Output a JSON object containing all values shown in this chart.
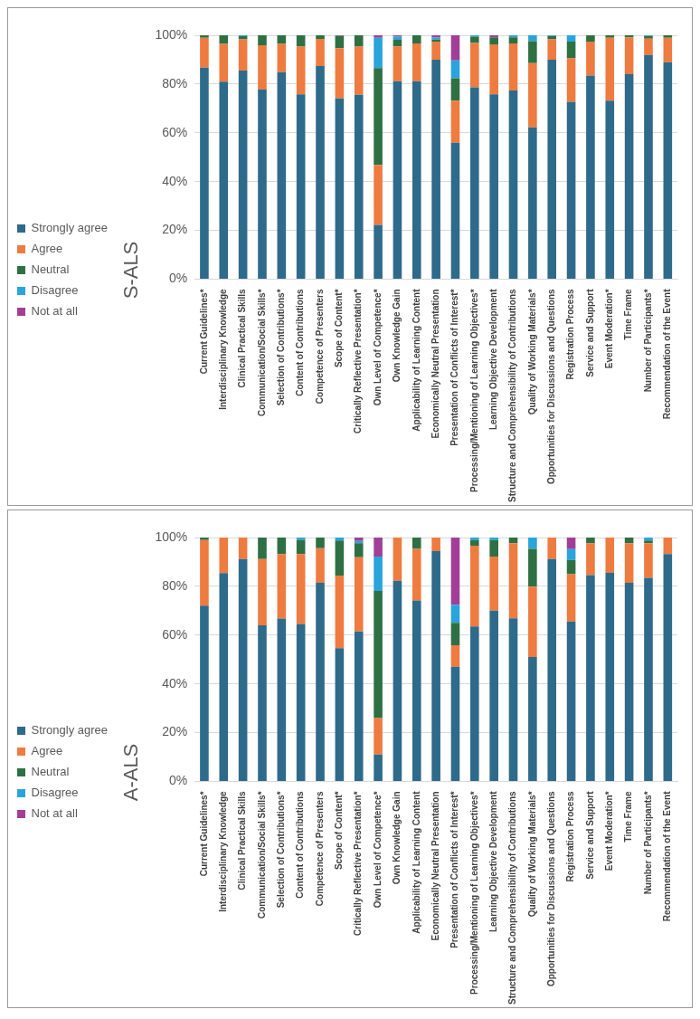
{
  "chart_data": [
    {
      "type": "bar",
      "title": "S-ALS",
      "stacked": true,
      "legend": "left",
      "grid": "y",
      "ylim": [
        0,
        100
      ],
      "yticks": [
        {
          "value": 0,
          "label": "0%"
        },
        {
          "value": 20,
          "label": "20%"
        },
        {
          "value": 40,
          "label": "40%"
        },
        {
          "value": 60,
          "label": "60%"
        },
        {
          "value": 80,
          "label": "80%"
        },
        {
          "value": 100,
          "label": "100%"
        }
      ],
      "categories": [
        "Current Guidelines*",
        "Interdisciplinary Knowledge",
        "Clinical Practical Skills",
        "Communication/Social Skills*",
        "Selection of Contributions*",
        "Content of Contributions",
        "Competence of Presenters",
        "Scope of Content*",
        "Critically Reflective Presentation*",
        "Own Level of Competence*",
        "Own Knowledge Gain",
        "Applicability of Learning Content",
        "Economically Neutral Presentation",
        "Presentation of Conflicts of Interest*",
        "Processing/Mentioning of Learning Objectives*",
        "Learning Objective Development",
        "Structure and Comprehensibility of Contributions",
        "Quality of Working Materials*",
        "Opportunities for Discussions and Questions",
        "Registration Process",
        "Service and Support",
        "Event Moderation*",
        "Time Frame",
        "Number of Participants*",
        "Recommendation of the Event"
      ],
      "series": [
        {
          "name": "Strongly agree",
          "color": "#2e6a8a",
          "values": [
            86.7,
            81,
            85.5,
            77.7,
            84.9,
            75.8,
            87.4,
            74.1,
            75.6,
            22.2,
            81.2,
            81.2,
            90,
            55.9,
            78.7,
            75.8,
            77.4,
            62.2,
            90,
            72.7,
            83.5,
            73.2,
            84,
            91.9,
            89
          ]
        },
        {
          "name": "Agree",
          "color": "#ee7b40",
          "values": [
            12.3,
            15.5,
            12.8,
            18.2,
            11.6,
            19.6,
            11.1,
            20.6,
            19.8,
            24.6,
            14.3,
            15.5,
            7.4,
            17.3,
            18.1,
            20.5,
            19.3,
            26.4,
            8.3,
            17.8,
            13.9,
            25.8,
            15.2,
            6.7,
            10
          ]
        },
        {
          "name": "Neutral",
          "color": "#2e7043",
          "values": [
            1,
            3.5,
            1.3,
            4.1,
            3.5,
            4.6,
            1.5,
            5,
            4.6,
            39.7,
            2.6,
            3.3,
            0.8,
            9.2,
            2.6,
            2.9,
            2.5,
            9,
            1.4,
            6.9,
            2.6,
            1,
            0.8,
            1.1,
            1
          ]
        },
        {
          "name": "Disagree",
          "color": "#29a4dc",
          "values": [
            0,
            0,
            0.4,
            0,
            0,
            0,
            0,
            0,
            0,
            12.5,
            1.3,
            0,
            0.9,
            7.3,
            0.6,
            0,
            0.8,
            2.4,
            0.3,
            2.6,
            0,
            0,
            0,
            0.3,
            0
          ]
        },
        {
          "name": "Not at all",
          "color": "#a13f97",
          "values": [
            0,
            0,
            0,
            0,
            0,
            0,
            0,
            0.3,
            0,
            1,
            0.6,
            0,
            0.9,
            10.3,
            0,
            0.8,
            0,
            0,
            0,
            0,
            0,
            0,
            0,
            0,
            0
          ]
        }
      ]
    },
    {
      "type": "bar",
      "title": "A-ALS",
      "stacked": true,
      "legend": "left",
      "grid": "y",
      "ylim": [
        0,
        100
      ],
      "yticks": [
        {
          "value": 0,
          "label": "0%"
        },
        {
          "value": 20,
          "label": "20%"
        },
        {
          "value": 40,
          "label": "40%"
        },
        {
          "value": 60,
          "label": "60%"
        },
        {
          "value": 80,
          "label": "80%"
        },
        {
          "value": 100,
          "label": "100%"
        }
      ],
      "categories": [
        "Current Guidelines*",
        "Interdisciplinary Knowledge",
        "Clinical Practical Skills",
        "Communication/Social Skills*",
        "Selection of Contributions*",
        "Content of Contributions",
        "Competence of Presenters",
        "Scope of Content*",
        "Critically Reflective Presentation*",
        "Own Level of Competence*",
        "Own Knowledge Gain",
        "Applicability of Learning Content",
        "Economically Neutral Presentation",
        "Presentation of Conflicts of Interest*",
        "Processing/Mentioning of Learning Objectives*",
        "Learning Objective Development",
        "Structure and Comprehensibility of Contributions",
        "Quality of Working Materials*",
        "Opportunities for Discussions and Questions",
        "Registration Process",
        "Service and Support",
        "Event Moderation*",
        "Time Frame",
        "Number of Participants*",
        "Recommendation of the Event"
      ],
      "series": [
        {
          "name": "Strongly agree",
          "color": "#2e6a8a",
          "values": [
            72.1,
            85.4,
            91.2,
            64,
            66.8,
            64.6,
            81.4,
            54.6,
            61.5,
            11,
            82.3,
            74.2,
            94.4,
            47,
            63.5,
            70,
            66.9,
            51,
            91.2,
            65.6,
            84.6,
            85.5,
            81.4,
            83.5,
            93.2
          ]
        },
        {
          "name": "Agree",
          "color": "#ee7b40",
          "values": [
            26.9,
            14.6,
            8.8,
            27.2,
            26.4,
            28.6,
            14.2,
            29.8,
            30.4,
            15,
            17.7,
            21.2,
            5.6,
            8.8,
            33.2,
            22.2,
            30.8,
            28.9,
            8.8,
            19.4,
            13.1,
            14.5,
            16.3,
            14.2,
            6.8
          ]
        },
        {
          "name": "Neutral",
          "color": "#2e7043",
          "values": [
            1,
            0,
            0,
            8.8,
            6.8,
            5.8,
            4.4,
            14.4,
            5.8,
            52.1,
            0,
            4.6,
            0,
            9.2,
            2.3,
            6.8,
            2.3,
            15.5,
            0,
            5.8,
            2.3,
            0,
            2.3,
            1.1,
            0
          ]
        },
        {
          "name": "Disagree",
          "color": "#29a4dc",
          "values": [
            0,
            0,
            0,
            0,
            0,
            1,
            0,
            1.2,
            0.9,
            14.1,
            0,
            0,
            0,
            7.4,
            1,
            1,
            0,
            4.6,
            0,
            4.5,
            0,
            0,
            0,
            1.2,
            0
          ]
        },
        {
          "name": "Not at all",
          "color": "#a13f97",
          "values": [
            0,
            0,
            0,
            0,
            0,
            0,
            0,
            0,
            1.4,
            7.8,
            0,
            0,
            0,
            27.6,
            0,
            0,
            0,
            0,
            0,
            4.7,
            0,
            0,
            0,
            0,
            0
          ]
        }
      ]
    }
  ]
}
